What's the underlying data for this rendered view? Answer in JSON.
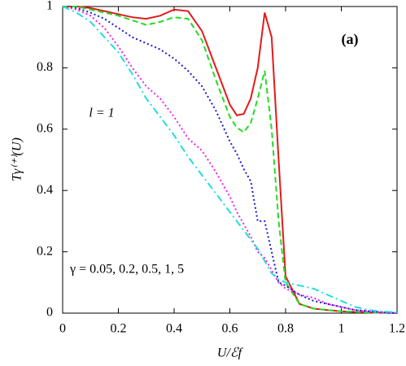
{
  "chart_data": {
    "type": "line",
    "xlabel": "U/ℰf",
    "ylabel": "Tγ⁽⁺⁾(U)",
    "annotations": [
      "(a)",
      "l = 1",
      "γ = 0.05, 0.2, 0.5, 1, 5"
    ],
    "x": [
      0,
      0.05,
      0.1,
      0.15,
      0.2,
      0.25,
      0.3,
      0.35,
      0.4,
      0.45,
      0.5,
      0.55,
      0.6,
      0.625,
      0.65,
      0.675,
      0.7,
      0.725,
      0.75,
      0.775,
      0.8,
      0.85,
      0.9,
      0.95,
      1,
      1.05,
      1.1,
      1.15,
      1.2
    ],
    "series": [
      {
        "color": "#e41a1c",
        "linestyle": "solid",
        "values": [
          1,
          1,
          0.995,
          0.985,
          0.975,
          0.965,
          0.96,
          0.97,
          0.99,
          0.985,
          0.92,
          0.8,
          0.68,
          0.645,
          0.65,
          0.7,
          0.8,
          0.98,
          0.9,
          0.5,
          0.12,
          0.03,
          0.015,
          0.01,
          0.006,
          0.004,
          0.002,
          0.001,
          0
        ]
      },
      {
        "color": "#22dd22",
        "linestyle": "dashed",
        "values": [
          1,
          1,
          0.99,
          0.98,
          0.97,
          0.955,
          0.94,
          0.95,
          0.965,
          0.96,
          0.89,
          0.76,
          0.64,
          0.605,
          0.59,
          0.62,
          0.7,
          0.79,
          0.6,
          0.3,
          0.1,
          0.03,
          0.015,
          0.01,
          0.006,
          0.004,
          0.002,
          0.001,
          0
        ]
      },
      {
        "color": "#1a1acc",
        "linestyle": "dotted",
        "values": [
          1,
          0.995,
          0.98,
          0.96,
          0.93,
          0.9,
          0.88,
          0.86,
          0.83,
          0.79,
          0.74,
          0.66,
          0.56,
          0.52,
          0.47,
          0.43,
          0.3,
          0.3,
          0.2,
          0.1,
          0.09,
          0.06,
          0.04,
          0.03,
          0.02,
          0.01,
          0.006,
          0.003,
          0
        ]
      },
      {
        "color": "#ee22ee",
        "linestyle": "dotted",
        "values": [
          1,
          0.99,
          0.97,
          0.93,
          0.87,
          0.8,
          0.74,
          0.7,
          0.64,
          0.57,
          0.53,
          0.46,
          0.38,
          0.33,
          0.29,
          0.25,
          0.2,
          0.18,
          0.14,
          0.1,
          0.08,
          0.06,
          0.05,
          0.03,
          0.02,
          0.01,
          0.006,
          0.003,
          0
        ]
      },
      {
        "color": "#22dddd",
        "linestyle": "dashdot",
        "values": [
          1,
          0.98,
          0.95,
          0.9,
          0.85,
          0.78,
          0.7,
          0.64,
          0.58,
          0.51,
          0.45,
          0.39,
          0.33,
          0.3,
          0.27,
          0.24,
          0.21,
          0.17,
          0.13,
          0.11,
          0.1,
          0.09,
          0.08,
          0.06,
          0.04,
          0.02,
          0.01,
          0.005,
          0.003
        ]
      }
    ],
    "xlim": [
      0,
      1.2
    ],
    "xticks": [
      0,
      0.2,
      0.4,
      0.6,
      0.8,
      1,
      1.2
    ],
    "ylim": [
      0,
      1
    ],
    "yticks": [
      0,
      0.2,
      0.4,
      0.6,
      0.8,
      1
    ],
    "grid": false
  }
}
